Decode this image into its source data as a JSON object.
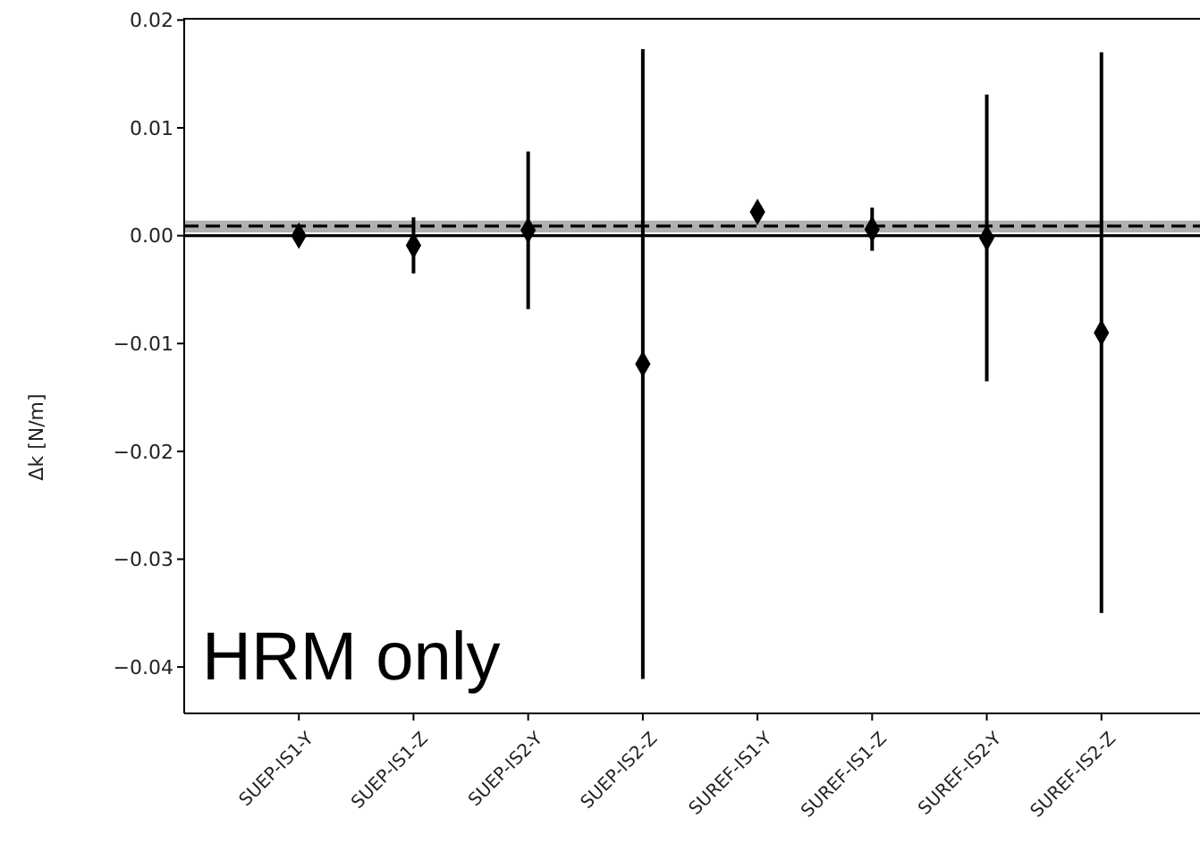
{
  "chart_data": {
    "type": "scatter",
    "ylabel": "Δk [N/m]",
    "categories": [
      "SUEP-IS1-Y",
      "SUEP-IS1-Z",
      "SUEP-IS2-Y",
      "SUEP-IS2-Z",
      "SUREF-IS1-Y",
      "SUREF-IS1-Z",
      "SUREF-IS2-Y",
      "SUREF-IS2-Z"
    ],
    "series": [
      {
        "color": "#000000",
        "values": [
          0.0,
          -0.0009,
          0.0005,
          -0.0119,
          0.0022,
          0.0006,
          -0.0002,
          -0.009
        ],
        "errors": [
          0.0008,
          0.0026,
          0.0073,
          0.0292,
          null,
          0.002,
          0.0133,
          0.026
        ]
      }
    ],
    "marker": "diamond",
    "ylim": [
      -0.0443,
      0.0202
    ],
    "yticks": [
      {
        "value": -0.04,
        "label": "−0.04"
      },
      {
        "value": -0.03,
        "label": "−0.03"
      },
      {
        "value": -0.02,
        "label": "−0.02"
      },
      {
        "value": -0.01,
        "label": "−0.01"
      },
      {
        "value": 0,
        "label": "0.00"
      },
      {
        "value": 0.01,
        "label": "0.01"
      },
      {
        "value": 0.02,
        "label": "0.02"
      }
    ],
    "ref_lines": [
      {
        "axis": "y",
        "value": 0,
        "color": "#000000",
        "line_style": "solid"
      },
      {
        "axis": "y",
        "value": 0.0009,
        "color": "#000000",
        "line_style": "dashed"
      }
    ],
    "bands": [
      {
        "axis": "y",
        "from": 0.0003,
        "to": 0.0014,
        "color": "#b0b0b0"
      }
    ],
    "annotations": [
      "HRM only"
    ]
  }
}
